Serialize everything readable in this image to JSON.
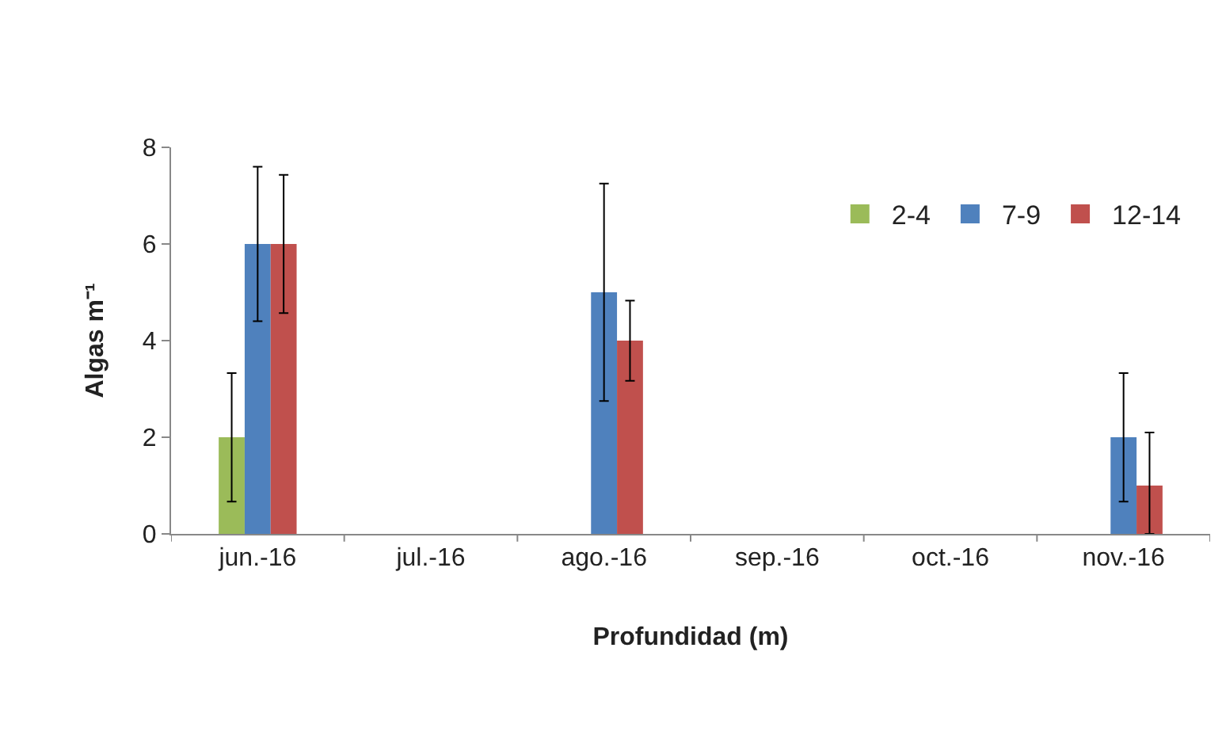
{
  "chart_data": {
    "type": "bar",
    "xlabel": "Profundidad (m)",
    "ylabel": "Algas m⁻¹",
    "categories": [
      "jun.-16",
      "jul.-16",
      "ago.-16",
      "sep.-16",
      "oct.-16",
      "nov.-16"
    ],
    "series": [
      {
        "name": "2-4",
        "color": "#9bbb59",
        "values": [
          2,
          null,
          null,
          null,
          null,
          null
        ],
        "errors": [
          1.33,
          null,
          null,
          null,
          null,
          null
        ]
      },
      {
        "name": "7-9",
        "color": "#4f81bd",
        "values": [
          6,
          null,
          5,
          null,
          null,
          2
        ],
        "errors": [
          1.6,
          null,
          2.25,
          null,
          null,
          1.33
        ]
      },
      {
        "name": "12-14",
        "color": "#c0504d",
        "values": [
          6,
          null,
          4,
          null,
          null,
          1
        ],
        "errors": [
          1.43,
          null,
          0.83,
          null,
          null,
          [
            0,
            2.1
          ]
        ]
      }
    ],
    "ylim": [
      0,
      8
    ],
    "yticks": [
      0,
      2,
      4,
      6,
      8
    ],
    "grid": false,
    "legend": "top right"
  }
}
